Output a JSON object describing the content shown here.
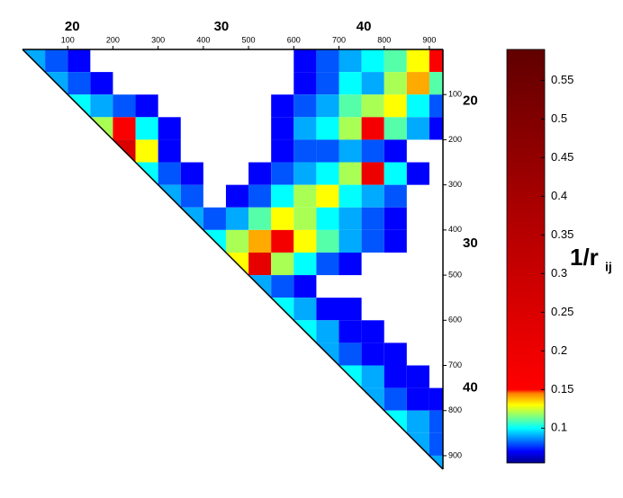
{
  "chart_data": {
    "type": "heatmap",
    "bins": [
      0,
      50,
      100,
      150,
      200,
      250,
      300,
      350,
      400,
      450,
      500,
      550,
      600,
      650,
      700,
      750,
      800,
      850,
      900,
      930
    ],
    "values": [
      [
        0.09,
        0.08,
        0.07,
        null,
        null,
        null,
        null,
        null,
        null,
        null,
        null,
        null,
        0.07,
        0.08,
        0.09,
        0.1,
        0.11,
        0.13,
        0.16
      ],
      [
        null,
        0.09,
        0.08,
        0.07,
        null,
        null,
        null,
        null,
        null,
        null,
        null,
        null,
        0.07,
        0.08,
        0.1,
        0.09,
        0.12,
        0.14,
        0.11
      ],
      [
        null,
        null,
        0.1,
        0.09,
        0.08,
        0.07,
        null,
        null,
        null,
        null,
        null,
        0.07,
        0.08,
        0.09,
        0.11,
        0.12,
        0.13,
        0.1,
        0.08
      ],
      [
        null,
        null,
        null,
        0.12,
        0.16,
        0.1,
        0.07,
        null,
        null,
        null,
        null,
        0.07,
        0.09,
        0.1,
        0.12,
        0.18,
        0.11,
        0.09,
        0.07
      ],
      [
        null,
        null,
        null,
        null,
        0.25,
        0.13,
        0.07,
        null,
        null,
        null,
        null,
        0.07,
        0.08,
        0.08,
        0.09,
        0.08,
        0.07,
        null,
        null
      ],
      [
        null,
        null,
        null,
        null,
        null,
        0.1,
        0.08,
        0.07,
        null,
        null,
        0.07,
        0.08,
        0.09,
        0.1,
        0.12,
        0.2,
        0.1,
        0.07,
        null
      ],
      [
        null,
        null,
        null,
        null,
        null,
        null,
        0.09,
        0.08,
        null,
        0.07,
        0.08,
        0.1,
        0.12,
        0.13,
        0.1,
        0.09,
        0.08,
        null,
        null
      ],
      [
        null,
        null,
        null,
        null,
        null,
        null,
        null,
        0.09,
        0.08,
        0.09,
        0.11,
        0.13,
        0.12,
        0.1,
        0.09,
        0.08,
        0.07,
        null,
        null
      ],
      [
        null,
        null,
        null,
        null,
        null,
        null,
        null,
        null,
        0.1,
        0.12,
        0.14,
        0.18,
        0.13,
        0.11,
        0.09,
        0.08,
        0.07,
        null,
        null
      ],
      [
        null,
        null,
        null,
        null,
        null,
        null,
        null,
        null,
        null,
        0.13,
        0.22,
        0.12,
        0.1,
        0.08,
        0.07,
        null,
        null,
        null,
        null
      ],
      [
        null,
        null,
        null,
        null,
        null,
        null,
        null,
        null,
        null,
        null,
        0.09,
        0.08,
        0.07,
        null,
        null,
        null,
        null,
        null,
        null
      ],
      [
        null,
        null,
        null,
        null,
        null,
        null,
        null,
        null,
        null,
        null,
        null,
        0.1,
        0.09,
        0.07,
        0.07,
        null,
        null,
        null,
        null
      ],
      [
        null,
        null,
        null,
        null,
        null,
        null,
        null,
        null,
        null,
        null,
        null,
        null,
        0.1,
        0.09,
        0.07,
        0.07,
        null,
        null,
        null
      ],
      [
        null,
        null,
        null,
        null,
        null,
        null,
        null,
        null,
        null,
        null,
        null,
        null,
        null,
        0.09,
        0.08,
        0.07,
        0.07,
        null,
        null
      ],
      [
        null,
        null,
        null,
        null,
        null,
        null,
        null,
        null,
        null,
        null,
        null,
        null,
        null,
        null,
        0.1,
        0.09,
        0.07,
        0.07,
        null
      ],
      [
        null,
        null,
        null,
        null,
        null,
        null,
        null,
        null,
        null,
        null,
        null,
        null,
        null,
        null,
        null,
        0.09,
        0.08,
        0.07,
        0.07
      ],
      [
        null,
        null,
        null,
        null,
        null,
        null,
        null,
        null,
        null,
        null,
        null,
        null,
        null,
        null,
        null,
        null,
        0.1,
        0.09,
        0.08
      ],
      [
        null,
        null,
        null,
        null,
        null,
        null,
        null,
        null,
        null,
        null,
        null,
        null,
        null,
        null,
        null,
        null,
        null,
        0.09,
        0.08
      ],
      [
        null,
        null,
        null,
        null,
        null,
        null,
        null,
        null,
        null,
        null,
        null,
        null,
        null,
        null,
        null,
        null,
        null,
        null,
        0.09
      ]
    ],
    "xlim": [
      0,
      930
    ],
    "ylim": [
      0,
      930
    ],
    "xticks": [
      100,
      200,
      300,
      400,
      500,
      600,
      700,
      800,
      900
    ],
    "yticks": [
      100,
      200,
      300,
      400,
      500,
      600,
      700,
      800,
      900
    ],
    "x_markers": [
      {
        "value": 110,
        "label": "20"
      },
      {
        "value": 440,
        "label": "30"
      },
      {
        "value": 755,
        "label": "40"
      }
    ],
    "y_markers": [
      {
        "value": 115,
        "label": "20"
      },
      {
        "value": 430,
        "label": "30"
      },
      {
        "value": 750,
        "label": "40"
      }
    ],
    "colorbar": {
      "label": "1/r",
      "label_subscript": "ij",
      "clim": [
        0.055,
        0.59
      ],
      "ticks": [
        0.1,
        0.15,
        0.2,
        0.25,
        0.3,
        0.35,
        0.4,
        0.45,
        0.5,
        0.55
      ],
      "colormap": [
        {
          "value": 0.055,
          "color": "#00008f"
        },
        {
          "value": 0.07,
          "color": "#0000ff"
        },
        {
          "value": 0.085,
          "color": "#0080ff"
        },
        {
          "value": 0.1,
          "color": "#00ffff"
        },
        {
          "value": 0.115,
          "color": "#80ff80"
        },
        {
          "value": 0.13,
          "color": "#ffff00"
        },
        {
          "value": 0.145,
          "color": "#ff8000"
        },
        {
          "value": 0.15,
          "color": "#ff0000"
        },
        {
          "value": 0.59,
          "color": "#600000"
        }
      ]
    }
  }
}
